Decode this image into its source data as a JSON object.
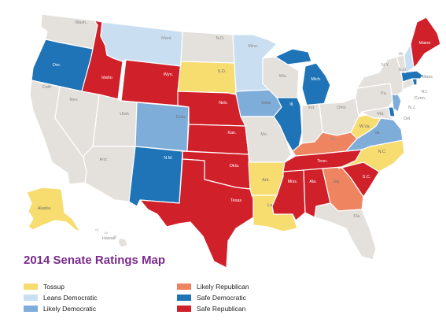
{
  "title": "2014 Senate Ratings Map",
  "colors": {
    "tossup": "#f7dc6f",
    "leans_dem": "#c9dff1",
    "likely_dem": "#7fadda",
    "safe_dem": "#1f73b7",
    "likely_rep": "#ef8560",
    "safe_rep": "#d0202a",
    "no_race": "#e4e1dd",
    "outline": "#ffffff"
  },
  "legend": [
    {
      "label": "Tossup",
      "rating": "tossup"
    },
    {
      "label": "Leans Democratic",
      "rating": "leans_dem"
    },
    {
      "label": "Likely Democratic",
      "rating": "likely_dem"
    },
    {
      "label": "Likely Republican",
      "rating": "likely_rep"
    },
    {
      "label": "Safe Democratic",
      "rating": "safe_dem"
    },
    {
      "label": "Safe Republican",
      "rating": "safe_rep"
    }
  ],
  "states": [
    {
      "id": "WA",
      "label": "Wash.",
      "rating": "no_race"
    },
    {
      "id": "OR",
      "label": "Ore.",
      "rating": "safe_dem"
    },
    {
      "id": "CA",
      "label": "Calif.",
      "rating": "no_race"
    },
    {
      "id": "NV",
      "label": "Nev.",
      "rating": "no_race"
    },
    {
      "id": "ID",
      "label": "Idaho",
      "rating": "safe_rep"
    },
    {
      "id": "MT",
      "label": "Mont.",
      "rating": "leans_dem"
    },
    {
      "id": "WY",
      "label": "Wyo.",
      "rating": "safe_rep"
    },
    {
      "id": "UT",
      "label": "Utah",
      "rating": "no_race"
    },
    {
      "id": "AZ",
      "label": "Ariz.",
      "rating": "no_race"
    },
    {
      "id": "CO",
      "label": "Colo.",
      "rating": "likely_dem"
    },
    {
      "id": "NM",
      "label": "N.M.",
      "rating": "safe_dem"
    },
    {
      "id": "ND",
      "label": "N.D.",
      "rating": "no_race"
    },
    {
      "id": "SD",
      "label": "S.D.",
      "rating": "tossup"
    },
    {
      "id": "NE",
      "label": "Neb.",
      "rating": "safe_rep"
    },
    {
      "id": "KS",
      "label": "Kan.",
      "rating": "safe_rep"
    },
    {
      "id": "OK",
      "label": "Okla.",
      "rating": "safe_rep"
    },
    {
      "id": "TX",
      "label": "Texas",
      "rating": "safe_rep"
    },
    {
      "id": "MN",
      "label": "Minn.",
      "rating": "leans_dem"
    },
    {
      "id": "IA",
      "label": "Iowa",
      "rating": "likely_dem"
    },
    {
      "id": "MO",
      "label": "Mo.",
      "rating": "no_race"
    },
    {
      "id": "AR",
      "label": "Ark.",
      "rating": "tossup"
    },
    {
      "id": "LA",
      "label": "La.",
      "rating": "tossup"
    },
    {
      "id": "WI",
      "label": "Wis.",
      "rating": "no_race"
    },
    {
      "id": "IL",
      "label": "Ill.",
      "rating": "safe_dem"
    },
    {
      "id": "MI",
      "label": "Mich.",
      "rating": "safe_dem"
    },
    {
      "id": "IN",
      "label": "Ind.",
      "rating": "no_race"
    },
    {
      "id": "OH",
      "label": "Ohio",
      "rating": "no_race"
    },
    {
      "id": "KY",
      "label": "Ky.",
      "rating": "likely_rep"
    },
    {
      "id": "TN",
      "label": "Tenn.",
      "rating": "safe_rep"
    },
    {
      "id": "MS",
      "label": "Miss.",
      "rating": "safe_rep"
    },
    {
      "id": "AL",
      "label": "Ala.",
      "rating": "safe_rep"
    },
    {
      "id": "GA",
      "label": "Ga.",
      "rating": "likely_rep"
    },
    {
      "id": "FL",
      "label": "Fla.",
      "rating": "no_race"
    },
    {
      "id": "SC",
      "label": "S.C.",
      "rating": "safe_rep"
    },
    {
      "id": "NC",
      "label": "N.C.",
      "rating": "tossup"
    },
    {
      "id": "VA",
      "label": "Va.",
      "rating": "likely_dem"
    },
    {
      "id": "WV",
      "label": "W.Va.",
      "rating": "tossup"
    },
    {
      "id": "PA",
      "label": "Pa.",
      "rating": "no_race"
    },
    {
      "id": "NY",
      "label": "N.Y.",
      "rating": "no_race"
    },
    {
      "id": "NJ",
      "label": "N.J.",
      "rating": "likely_dem"
    },
    {
      "id": "DE",
      "label": "Del.",
      "rating": "safe_dem"
    },
    {
      "id": "MD",
      "label": "Md.",
      "rating": "no_race"
    },
    {
      "id": "CT",
      "label": "Conn.",
      "rating": "no_race"
    },
    {
      "id": "RI",
      "label": "R.I.",
      "rating": "safe_dem"
    },
    {
      "id": "MA",
      "label": "Mass.",
      "rating": "safe_dem"
    },
    {
      "id": "VT",
      "label": "Vt.",
      "rating": "no_race"
    },
    {
      "id": "NH",
      "label": "N.H.",
      "rating": "leans_dem"
    },
    {
      "id": "ME",
      "label": "Maine",
      "rating": "safe_rep"
    },
    {
      "id": "AK",
      "label": "Alaska",
      "rating": "tossup"
    },
    {
      "id": "HI",
      "label": "Hawaii",
      "rating": "no_race"
    }
  ]
}
